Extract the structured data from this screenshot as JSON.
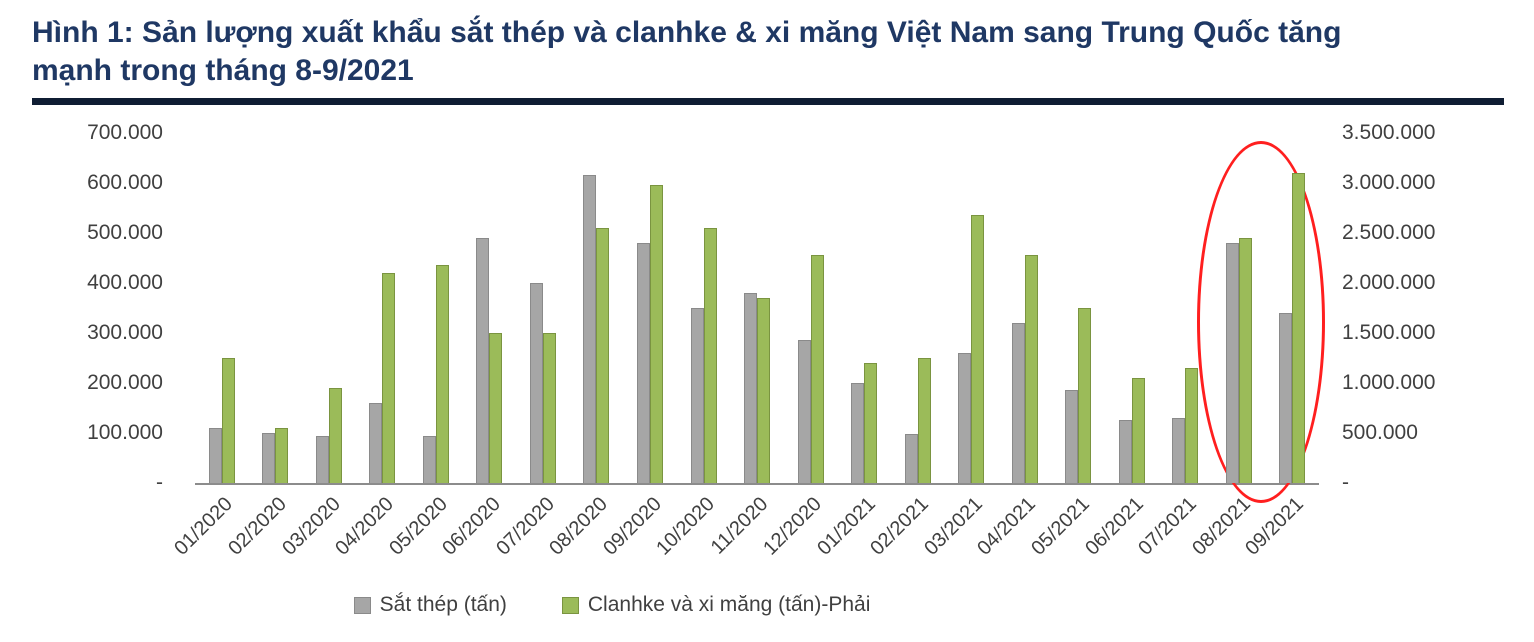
{
  "title": {
    "line1": "Hình 1:  Sản lượng xuất khẩu sắt thép và clanhke & xi măng Việt Nam sang Trung Quốc tăng",
    "line2": "mạnh trong tháng 8-9/2021"
  },
  "colors": {
    "title": "#1F3864",
    "steel_bar": "#A6A6A6",
    "clinker_bar": "#9BBB59",
    "ellipse": "#FF1F1F"
  },
  "legend": [
    {
      "label": "Sắt thép (tấn)",
      "color": "#A6A6A6"
    },
    {
      "label": "Clanhke và xi măng (tấn)-Phải",
      "color": "#9BBB59"
    }
  ],
  "chart_data": {
    "type": "bar",
    "title": "Sản lượng xuất khẩu sắt thép và clanhke & xi măng Việt Nam sang Trung Quốc",
    "categories": [
      "01/2020",
      "02/2020",
      "03/2020",
      "04/2020",
      "05/2020",
      "06/2020",
      "07/2020",
      "08/2020",
      "09/2020",
      "10/2020",
      "11/2020",
      "12/2020",
      "01/2021",
      "02/2021",
      "03/2021",
      "04/2021",
      "05/2021",
      "06/2021",
      "07/2021",
      "08/2021",
      "09/2021"
    ],
    "series": [
      {
        "name": "Sắt thép (tấn)",
        "axis": "left",
        "values": [
          110000,
          100000,
          95000,
          160000,
          95000,
          490000,
          400000,
          615000,
          480000,
          350000,
          380000,
          285000,
          200000,
          97000,
          260000,
          320000,
          185000,
          125000,
          130000,
          480000,
          340000
        ]
      },
      {
        "name": "Clanhke và xi măng (tấn)-Phải",
        "axis": "right",
        "values": [
          1250000,
          550000,
          950000,
          2100000,
          2175000,
          1500000,
          1500000,
          2550000,
          2975000,
          2550000,
          1850000,
          2275000,
          1200000,
          1250000,
          2675000,
          2275000,
          1750000,
          1050000,
          1150000,
          2450000,
          3100000
        ]
      }
    ],
    "left_axis": {
      "min": 0,
      "max": 700000,
      "ticks": [
        "700.000",
        "600.000",
        "500.000",
        "400.000",
        "300.000",
        "200.000",
        "100.000",
        "-"
      ]
    },
    "right_axis": {
      "min": 0,
      "max": 3500000,
      "ticks": [
        "3.500.000",
        "3.000.000",
        "2.500.000",
        "2.000.000",
        "1.500.000",
        "1.000.000",
        "500.000",
        "-"
      ]
    },
    "grid": false,
    "legend_position": "bottom",
    "annotation": "red ellipse highlighting 08/2021 and 09/2021 bars"
  }
}
